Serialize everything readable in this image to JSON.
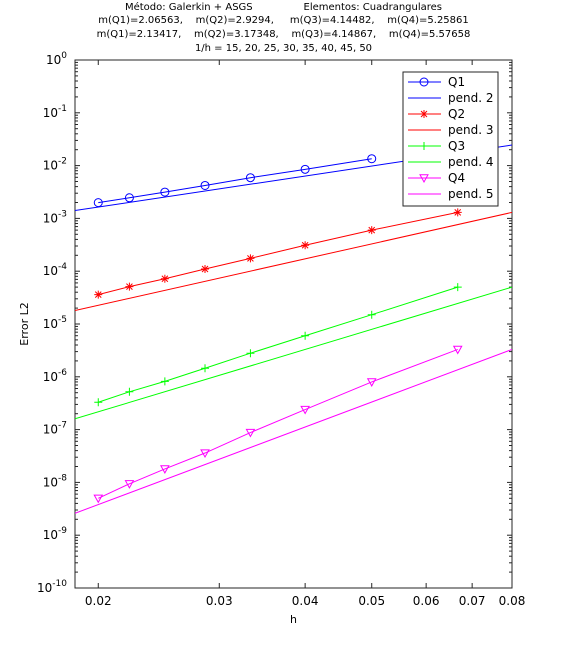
{
  "title_lines": [
    "Método: Galerkin + ASGS                Elementos: Cuadrangulares",
    "m(Q1)=2.06563,    m(Q2)=2.9294,     m(Q3)=4.14482,    m(Q4)=5.25861",
    "m(Q1)=2.13417,    m(Q2)=3.17348,    m(Q3)=4.14867,    m(Q4)=5.57658",
    "1/h = 15, 20, 25, 30, 35, 40, 45, 50"
  ],
  "chart_data": {
    "type": "line",
    "xlabel": "h",
    "ylabel": "Error L2",
    "xscale": "log",
    "yscale": "log",
    "xlim": [
      0.0185,
      0.08
    ],
    "ylim": [
      1e-10,
      1
    ],
    "x_ticks": [
      0.02,
      0.03,
      0.04,
      0.05,
      0.06,
      0.07,
      0.08
    ],
    "x_tick_labels": [
      "0.02",
      "0.03",
      "0.04",
      "0.05",
      "0.06",
      "0.07",
      "0.08"
    ],
    "y_ticks": [
      -10,
      -9,
      -8,
      -7,
      -6,
      -5,
      -4,
      -3,
      -2,
      -1,
      0
    ],
    "y_tick_labels": [
      "10",
      "10",
      "10",
      "10",
      "10",
      "10",
      "10",
      "10",
      "10",
      "10",
      "10"
    ],
    "y_tick_exponents": [
      "-10",
      "-9",
      "-8",
      "-7",
      "-6",
      "-5",
      "-4",
      "-3",
      "-2",
      "-1",
      "0"
    ],
    "legend_position": "top-right",
    "x": [
      0.02,
      0.0222,
      0.025,
      0.0286,
      0.0333,
      0.04,
      0.05,
      0.0667
    ],
    "series": [
      {
        "name": "Q1",
        "color": "#0000ff",
        "marker": "circle",
        "values": [
          0.00199,
          0.00246,
          0.00315,
          0.0042,
          0.0059,
          0.0085,
          0.0135,
          null
        ]
      },
      {
        "name": "pend. 2",
        "color": "#0000ff",
        "marker": "none",
        "line_y_at": [
          [
            0.0185,
            0.00141
          ],
          [
            0.08,
            0.0245
          ]
        ]
      },
      {
        "name": "Q2",
        "color": "#ff0000",
        "marker": "star",
        "values": [
          3.6e-05,
          5.1e-05,
          7.2e-05,
          0.00011,
          0.000175,
          0.00031,
          0.0006,
          0.0013
        ]
      },
      {
        "name": "pend. 3",
        "color": "#ff0000",
        "marker": "none",
        "line_y_at": [
          [
            0.0185,
            1.8e-05
          ],
          [
            0.08,
            0.0013
          ]
        ]
      },
      {
        "name": "Q3",
        "color": "#00ff00",
        "marker": "plus",
        "values": [
          3.3e-07,
          5.2e-07,
          8.2e-07,
          1.45e-06,
          2.8e-06,
          6e-06,
          1.5e-05,
          5e-05
        ]
      },
      {
        "name": "pend. 4",
        "color": "#00ff00",
        "marker": "none",
        "line_y_at": [
          [
            0.0185,
            1.6e-07
          ],
          [
            0.08,
            5e-05
          ]
        ]
      },
      {
        "name": "Q4",
        "color": "#ff00ff",
        "marker": "triangle-down",
        "values": [
          5e-09,
          9.4e-09,
          1.8e-08,
          3.6e-08,
          8.8e-08,
          2.4e-07,
          8e-07,
          3.3e-06
        ]
      },
      {
        "name": "pend. 5",
        "color": "#ff00ff",
        "marker": "none",
        "line_y_at": [
          [
            0.0185,
            2.6e-09
          ],
          [
            0.08,
            3.3e-06
          ]
        ]
      }
    ]
  }
}
